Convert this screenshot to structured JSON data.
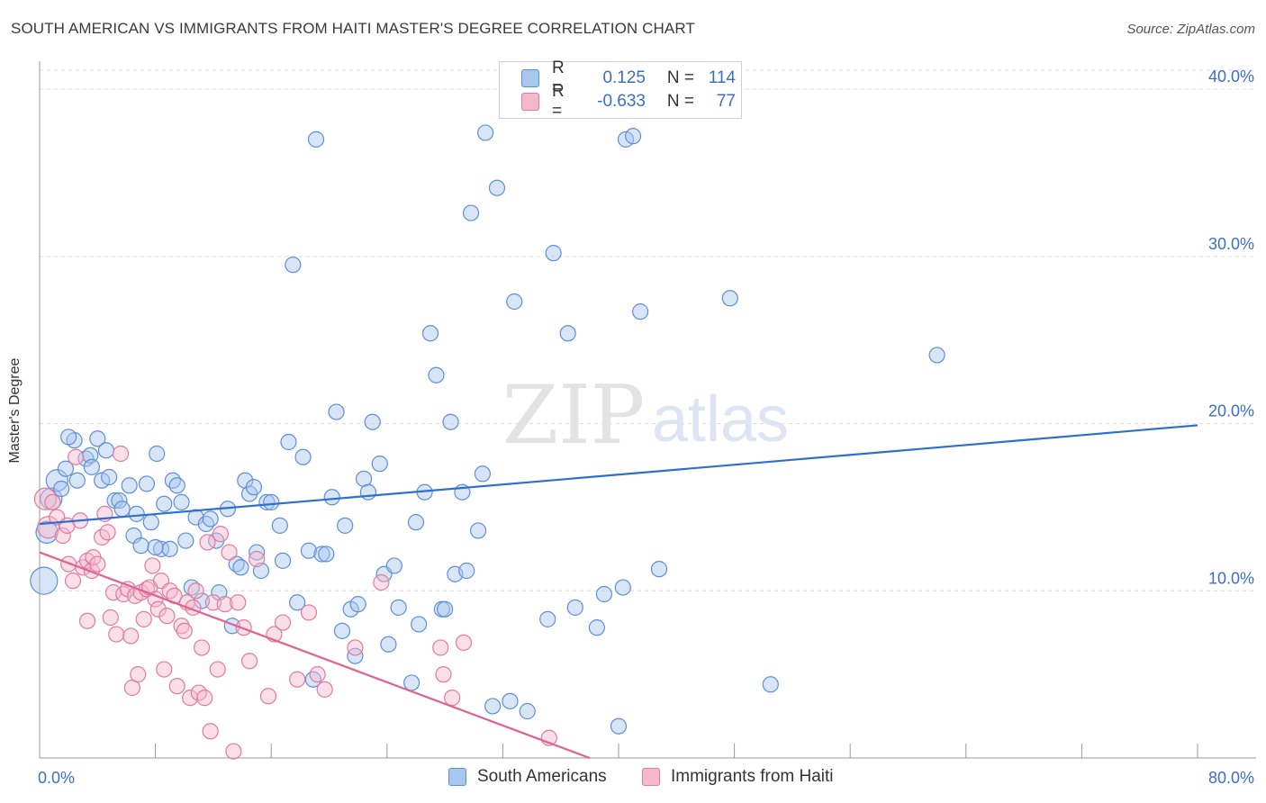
{
  "header": {
    "title": "SOUTH AMERICAN VS IMMIGRANTS FROM HAITI MASTER'S DEGREE CORRELATION CHART",
    "source": "Source: ZipAtlas.com"
  },
  "watermark": {
    "zip": "ZIP",
    "atlas": "atlas"
  },
  "colors": {
    "blue_fill": "#a9c6ee",
    "blue_stroke": "#5d8fd6",
    "blue_line": "#2f6fcf",
    "pink_fill": "#f5b7cc",
    "pink_stroke": "#e07aa0",
    "pink_line": "#e0628e",
    "tick_label": "#3b6fc6",
    "grid": "#dcdcdc"
  },
  "legend_top": {
    "rows": [
      {
        "r_label": "R =",
        "r_value": "0.125",
        "n_label": "N =",
        "n_value": "114",
        "color": "blue"
      },
      {
        "r_label": "R =",
        "r_value": "-0.633",
        "n_label": "N =",
        "n_value": "77",
        "color": "pink"
      }
    ]
  },
  "legend_bottom": {
    "items": [
      {
        "label": "South Americans",
        "color": "blue"
      },
      {
        "label": "Immigrants from Haiti",
        "color": "pink"
      }
    ]
  },
  "chart_data": {
    "type": "scatter",
    "title": "SOUTH AMERICAN VS IMMIGRANTS FROM HAITI MASTER'S DEGREE CORRELATION CHART",
    "xlabel": "",
    "ylabel": "Master's Degree",
    "xlim": [
      0,
      80
    ],
    "ylim": [
      0,
      42
    ],
    "x_tick_labels": [
      {
        "value": 0,
        "label": "0.0%"
      },
      {
        "value": 80,
        "label": "80.0%"
      }
    ],
    "y_tick_labels": [
      {
        "value": 10,
        "label": "10.0%"
      },
      {
        "value": 20,
        "label": "20.0%"
      },
      {
        "value": 30,
        "label": "30.0%"
      },
      {
        "value": 40,
        "label": "40.0%"
      }
    ],
    "x_minor_ticks": [
      0,
      8,
      16,
      24,
      32,
      40,
      48,
      56,
      64,
      72,
      80
    ],
    "grid": true,
    "series": [
      {
        "name": "South Americans",
        "color": "blue",
        "trend": {
          "x": [
            0,
            80
          ],
          "y": [
            14.0,
            19.9
          ]
        },
        "points": [
          [
            0.3,
            10.6,
            3
          ],
          [
            0.5,
            13.5,
            2
          ],
          [
            0.8,
            15.5,
            2
          ],
          [
            1.2,
            16.6,
            2
          ],
          [
            1.5,
            16.1,
            1
          ],
          [
            1.8,
            17.3,
            1
          ],
          [
            2.4,
            19.0,
            1
          ],
          [
            2.6,
            16.6,
            1
          ],
          [
            3.2,
            17.9,
            1
          ],
          [
            3.5,
            18.1,
            1
          ],
          [
            3.6,
            17.4,
            1
          ],
          [
            4.0,
            19.1,
            1
          ],
          [
            4.3,
            16.6,
            1
          ],
          [
            4.6,
            18.4,
            1
          ],
          [
            4.8,
            16.8,
            1
          ],
          [
            5.2,
            15.4,
            1
          ],
          [
            5.5,
            15.4,
            1
          ],
          [
            5.7,
            14.9,
            1
          ],
          [
            6.2,
            16.3,
            1
          ],
          [
            6.5,
            13.3,
            1
          ],
          [
            6.7,
            14.6,
            1
          ],
          [
            7.0,
            12.7,
            1
          ],
          [
            7.4,
            16.4,
            1
          ],
          [
            7.7,
            14.1,
            1
          ],
          [
            8.1,
            18.2,
            1
          ],
          [
            8.4,
            12.5,
            1
          ],
          [
            8.6,
            15.2,
            1
          ],
          [
            9.0,
            12.5,
            1
          ],
          [
            9.2,
            16.6,
            1
          ],
          [
            9.5,
            16.3,
            1
          ],
          [
            9.8,
            15.3,
            1
          ],
          [
            10.1,
            13.0,
            1
          ],
          [
            10.5,
            10.2,
            1
          ],
          [
            10.8,
            14.4,
            1
          ],
          [
            11.2,
            9.4,
            1
          ],
          [
            11.5,
            14.0,
            1
          ],
          [
            11.8,
            14.3,
            1
          ],
          [
            12.2,
            13.0,
            1
          ],
          [
            12.4,
            9.9,
            1
          ],
          [
            13.0,
            14.9,
            1
          ],
          [
            13.3,
            7.9,
            1
          ],
          [
            13.6,
            11.6,
            1
          ],
          [
            13.9,
            11.4,
            1
          ],
          [
            14.2,
            16.6,
            1
          ],
          [
            14.5,
            15.8,
            1
          ],
          [
            14.8,
            16.2,
            1
          ],
          [
            15.0,
            12.3,
            1
          ],
          [
            15.3,
            11.2,
            1
          ],
          [
            15.7,
            15.3,
            1
          ],
          [
            16.0,
            15.3,
            1
          ],
          [
            16.6,
            13.9,
            1
          ],
          [
            16.8,
            11.8,
            1
          ],
          [
            17.2,
            18.9,
            1
          ],
          [
            17.5,
            29.5,
            1
          ],
          [
            17.8,
            9.3,
            1
          ],
          [
            18.2,
            18.0,
            1
          ],
          [
            18.6,
            12.4,
            1
          ],
          [
            18.9,
            4.7,
            1
          ],
          [
            19.1,
            37.0,
            1
          ],
          [
            19.5,
            12.2,
            1
          ],
          [
            19.8,
            12.2,
            1
          ],
          [
            20.2,
            15.6,
            1
          ],
          [
            20.5,
            20.7,
            1
          ],
          [
            20.9,
            7.6,
            1
          ],
          [
            21.1,
            13.9,
            1
          ],
          [
            21.5,
            8.9,
            1
          ],
          [
            21.8,
            6.1,
            1
          ],
          [
            22.0,
            9.2,
            1
          ],
          [
            22.4,
            16.7,
            1
          ],
          [
            22.7,
            15.9,
            1
          ],
          [
            23.0,
            20.1,
            1
          ],
          [
            23.5,
            17.6,
            1
          ],
          [
            23.8,
            11.0,
            1
          ],
          [
            24.1,
            6.8,
            1
          ],
          [
            24.5,
            11.5,
            1
          ],
          [
            24.8,
            9.0,
            1
          ],
          [
            25.7,
            4.5,
            1
          ],
          [
            26.0,
            14.1,
            1
          ],
          [
            26.2,
            8.0,
            1
          ],
          [
            26.6,
            15.9,
            1
          ],
          [
            27.0,
            25.4,
            1
          ],
          [
            27.4,
            22.9,
            1
          ],
          [
            27.8,
            8.9,
            1
          ],
          [
            28.0,
            8.9,
            1
          ],
          [
            28.4,
            20.1,
            1
          ],
          [
            28.7,
            11.0,
            1
          ],
          [
            29.2,
            15.9,
            1
          ],
          [
            29.5,
            11.2,
            1
          ],
          [
            29.8,
            32.6,
            1
          ],
          [
            30.3,
            13.6,
            1
          ],
          [
            30.6,
            17.0,
            1
          ],
          [
            30.8,
            37.4,
            1
          ],
          [
            31.3,
            3.1,
            1
          ],
          [
            31.6,
            34.1,
            1
          ],
          [
            32.5,
            3.4,
            1
          ],
          [
            32.8,
            27.3,
            1
          ],
          [
            33.7,
            2.8,
            1
          ],
          [
            35.1,
            8.3,
            1
          ],
          [
            35.5,
            30.2,
            1
          ],
          [
            36.5,
            25.4,
            1
          ],
          [
            37.0,
            9.0,
            1
          ],
          [
            38.5,
            7.8,
            1
          ],
          [
            39.0,
            9.8,
            1
          ],
          [
            40.0,
            1.9,
            1
          ],
          [
            40.3,
            10.2,
            1
          ],
          [
            40.5,
            37.0,
            1
          ],
          [
            41.5,
            26.7,
            1
          ],
          [
            42.8,
            11.3,
            1
          ],
          [
            47.7,
            27.5,
            1
          ],
          [
            50.5,
            4.4,
            1
          ],
          [
            62.0,
            24.1,
            1
          ],
          [
            2.0,
            19.2,
            1
          ],
          [
            8.0,
            12.6,
            1
          ],
          [
            41.0,
            37.2,
            1
          ]
        ]
      },
      {
        "name": "Immigrants from Haiti",
        "color": "pink",
        "trend": {
          "x": [
            0,
            38.0
          ],
          "y": [
            12.3,
            0.0
          ]
        },
        "points": [
          [
            0.4,
            15.5,
            2
          ],
          [
            0.6,
            13.8,
            2
          ],
          [
            0.9,
            15.3,
            1
          ],
          [
            1.2,
            14.4,
            1
          ],
          [
            1.6,
            13.3,
            1
          ],
          [
            1.9,
            13.9,
            1
          ],
          [
            2.0,
            11.6,
            1
          ],
          [
            2.3,
            10.6,
            1
          ],
          [
            2.5,
            18.0,
            1
          ],
          [
            2.8,
            14.2,
            1
          ],
          [
            3.0,
            11.4,
            1
          ],
          [
            3.3,
            11.8,
            1
          ],
          [
            3.3,
            8.2,
            1
          ],
          [
            3.6,
            11.2,
            1
          ],
          [
            3.7,
            12.0,
            1
          ],
          [
            4.0,
            11.6,
            1
          ],
          [
            4.3,
            13.2,
            1
          ],
          [
            4.5,
            14.6,
            1
          ],
          [
            4.7,
            13.5,
            1
          ],
          [
            4.9,
            8.4,
            1
          ],
          [
            5.1,
            9.9,
            1
          ],
          [
            5.3,
            7.4,
            1
          ],
          [
            5.6,
            18.2,
            1
          ],
          [
            5.8,
            9.8,
            1
          ],
          [
            6.1,
            10.1,
            1
          ],
          [
            6.3,
            7.3,
            1
          ],
          [
            6.4,
            4.2,
            1
          ],
          [
            6.6,
            9.7,
            1
          ],
          [
            6.8,
            5.0,
            1
          ],
          [
            7.0,
            9.9,
            1
          ],
          [
            7.2,
            8.3,
            1
          ],
          [
            7.4,
            10.1,
            1
          ],
          [
            7.6,
            10.2,
            1
          ],
          [
            7.8,
            11.5,
            1
          ],
          [
            8.0,
            9.5,
            1
          ],
          [
            8.2,
            8.9,
            1
          ],
          [
            8.4,
            10.6,
            1
          ],
          [
            8.6,
            5.3,
            1
          ],
          [
            8.8,
            8.5,
            1
          ],
          [
            9.0,
            10.0,
            1
          ],
          [
            9.3,
            9.7,
            1
          ],
          [
            9.5,
            4.3,
            1
          ],
          [
            9.8,
            7.9,
            1
          ],
          [
            10.0,
            7.6,
            1
          ],
          [
            10.2,
            9.3,
            1
          ],
          [
            10.4,
            3.6,
            1
          ],
          [
            10.6,
            9.0,
            1
          ],
          [
            10.8,
            10.0,
            1
          ],
          [
            11.0,
            3.9,
            1
          ],
          [
            11.2,
            6.6,
            1
          ],
          [
            11.4,
            3.6,
            1
          ],
          [
            11.6,
            12.9,
            1
          ],
          [
            11.8,
            1.6,
            1
          ],
          [
            12.0,
            9.3,
            1
          ],
          [
            12.3,
            5.3,
            1
          ],
          [
            12.5,
            13.4,
            1
          ],
          [
            12.8,
            9.2,
            1
          ],
          [
            13.1,
            12.3,
            1
          ],
          [
            13.4,
            0.4,
            1
          ],
          [
            13.7,
            9.3,
            1
          ],
          [
            14.1,
            7.8,
            1
          ],
          [
            14.5,
            5.8,
            1
          ],
          [
            15.0,
            11.9,
            1
          ],
          [
            15.8,
            3.7,
            1
          ],
          [
            16.2,
            7.4,
            1
          ],
          [
            16.8,
            8.1,
            1
          ],
          [
            17.8,
            4.7,
            1
          ],
          [
            18.6,
            8.7,
            1
          ],
          [
            19.2,
            5.0,
            1
          ],
          [
            19.7,
            4.1,
            1
          ],
          [
            21.8,
            6.6,
            1
          ],
          [
            23.6,
            10.5,
            1
          ],
          [
            27.7,
            6.6,
            1
          ],
          [
            27.9,
            5.0,
            1
          ],
          [
            28.5,
            3.6,
            1
          ],
          [
            29.3,
            6.9,
            1
          ],
          [
            35.2,
            1.2,
            1
          ]
        ]
      }
    ]
  }
}
